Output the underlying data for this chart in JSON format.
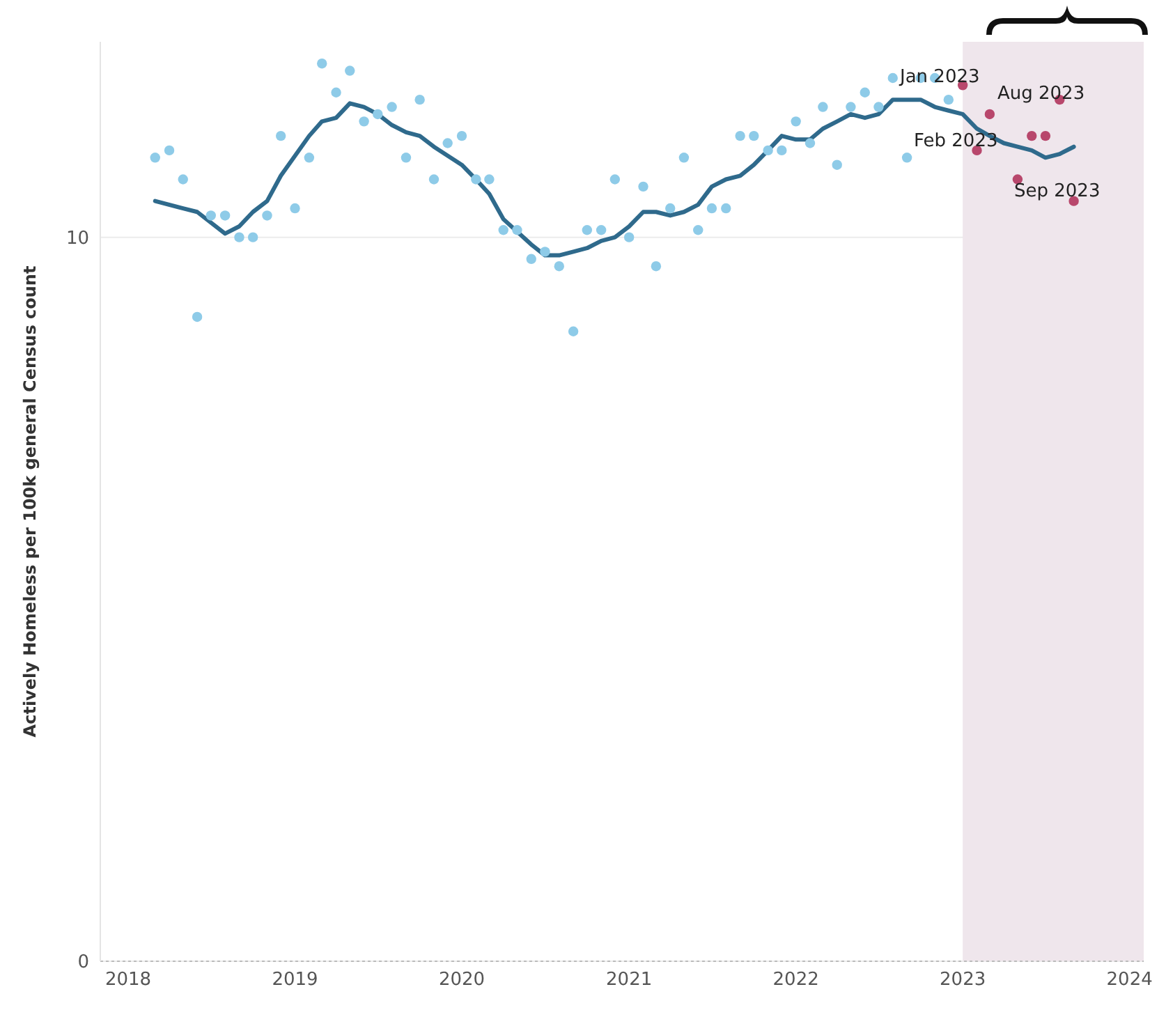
{
  "chart_data": {
    "type": "scatter",
    "ylabel": "Actively Homeless per 100k general Census count",
    "xlim": [
      "2017-11",
      "2024-02"
    ],
    "xticks": [
      "2018",
      "2019",
      "2020",
      "2021",
      "2022",
      "2023",
      "2024"
    ],
    "ylim": [
      0,
      12.7
    ],
    "yticks": [
      0,
      10
    ],
    "grid": "y",
    "marker": "circle",
    "annotations": [
      "Jan 2023",
      "Aug 2023",
      "Feb 2023",
      "Sep 2023"
    ],
    "bands": [
      {
        "axis": "x",
        "from": "2023-01",
        "to": "2024-02",
        "color": "#efe6ec"
      }
    ],
    "series": [
      {
        "color": "#8ecbe8",
        "x": [
          "2018-03",
          "2018-04",
          "2018-05",
          "2018-06",
          "2018-07",
          "2018-08",
          "2018-09",
          "2018-10",
          "2018-11",
          "2018-12",
          "2019-01",
          "2019-02",
          "2019-03",
          "2019-04",
          "2019-05",
          "2019-06",
          "2019-07",
          "2019-08",
          "2019-09",
          "2019-10",
          "2019-11",
          "2019-12",
          "2020-01",
          "2020-02",
          "2020-03",
          "2020-04",
          "2020-05",
          "2020-06",
          "2020-07",
          "2020-08",
          "2020-09",
          "2020-10",
          "2020-11",
          "2020-12",
          "2021-01",
          "2021-02",
          "2021-03",
          "2021-04",
          "2021-05",
          "2021-06",
          "2021-07",
          "2021-08",
          "2021-09",
          "2021-10",
          "2021-11",
          "2021-12",
          "2022-01",
          "2022-02",
          "2022-03",
          "2022-04",
          "2022-05",
          "2022-06",
          "2022-07",
          "2022-08",
          "2022-09",
          "2022-10",
          "2022-11",
          "2022-12"
        ],
        "values": [
          11.1,
          11.2,
          10.8,
          8.9,
          10.3,
          10.3,
          10.0,
          10.0,
          10.3,
          11.4,
          10.4,
          11.1,
          12.4,
          12.0,
          12.3,
          11.6,
          11.7,
          11.8,
          11.1,
          11.9,
          10.8,
          11.3,
          11.4,
          10.8,
          10.8,
          10.1,
          10.1,
          9.7,
          9.8,
          9.6,
          8.7,
          10.1,
          10.1,
          10.8,
          10.0,
          10.7,
          9.6,
          10.4,
          11.1,
          10.1,
          10.4,
          10.4,
          11.4,
          11.4,
          11.2,
          11.2,
          11.6,
          11.3,
          11.8,
          11.0,
          11.8,
          12.0,
          11.8,
          12.2,
          11.1,
          12.2,
          12.2,
          11.9
        ]
      },
      {
        "color": "#b8476c",
        "x": [
          "2023-01",
          "2023-02",
          "2023-03",
          "2023-04",
          "2023-05",
          "2023-06",
          "2023-07",
          "2023-08",
          "2023-09"
        ],
        "values": [
          12.1,
          11.2,
          11.7,
          null,
          10.8,
          11.4,
          11.4,
          11.9,
          10.5
        ]
      },
      {
        "type": "line",
        "color": "#2f6a8c",
        "line_style": "solid",
        "marker": "none",
        "x": [
          "2018-03",
          "2018-05",
          "2018-06",
          "2018-08",
          "2018-09",
          "2018-10",
          "2018-11",
          "2018-12",
          "2019-02",
          "2019-03",
          "2019-04",
          "2019-05",
          "2019-06",
          "2019-07",
          "2019-08",
          "2019-09",
          "2019-10",
          "2019-11",
          "2020-01",
          "2020-02",
          "2020-03",
          "2020-04",
          "2020-06",
          "2020-07",
          "2020-08",
          "2020-09",
          "2020-10",
          "2020-11",
          "2020-12",
          "2021-01",
          "2021-02",
          "2021-03",
          "2021-04",
          "2021-05",
          "2021-06",
          "2021-07",
          "2021-08",
          "2021-09",
          "2021-10",
          "2021-11",
          "2021-12",
          "2022-01",
          "2022-02",
          "2022-03",
          "2022-04",
          "2022-05",
          "2022-06",
          "2022-07",
          "2022-08",
          "2022-09",
          "2022-10",
          "2022-11",
          "2022-12",
          "2023-01",
          "2023-02",
          "2023-03",
          "2023-04",
          "2023-05",
          "2023-06",
          "2023-07",
          "2023-08",
          "2023-09"
        ],
        "values": [
          10.5,
          10.4,
          10.35,
          10.05,
          10.15,
          10.35,
          10.5,
          10.85,
          11.4,
          11.6,
          11.65,
          11.85,
          11.8,
          11.7,
          11.55,
          11.45,
          11.4,
          11.25,
          11.0,
          10.8,
          10.6,
          10.25,
          9.9,
          9.75,
          9.75,
          9.8,
          9.85,
          9.95,
          10.0,
          10.15,
          10.35,
          10.35,
          10.3,
          10.35,
          10.45,
          10.7,
          10.8,
          10.85,
          11.0,
          11.2,
          11.4,
          11.35,
          11.35,
          11.5,
          11.6,
          11.7,
          11.65,
          11.7,
          11.9,
          11.9,
          11.9,
          11.8,
          11.75,
          11.7,
          11.5,
          11.4,
          11.3,
          11.25,
          11.2,
          11.1,
          11.15,
          11.25
        ]
      }
    ]
  }
}
